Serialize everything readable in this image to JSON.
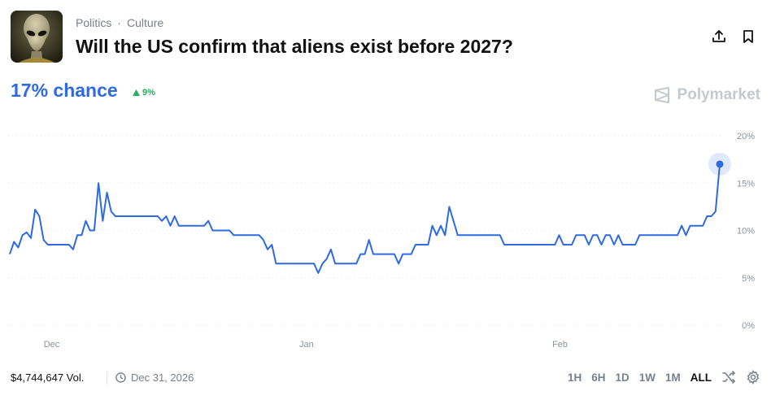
{
  "market": {
    "category": "Politics",
    "subcategory": "Culture",
    "separator": "·",
    "title": "Will the US confirm that aliens exist before 2027?",
    "chance_label": "17% chance",
    "change_label": "9%",
    "brand": "Polymarket"
  },
  "footer": {
    "volume": "$4,744,647 Vol.",
    "end_date": "Dec 31, 2026",
    "ranges": [
      "1H",
      "6H",
      "1D",
      "1W",
      "1M",
      "ALL"
    ],
    "active_range": "ALL"
  },
  "icons": {
    "share": "share-icon",
    "bookmark": "bookmark-icon",
    "calendar": "clock-icon",
    "shuffle": "shuffle-icon",
    "settings": "gear-icon"
  },
  "colors": {
    "accent": "#2d6ae3",
    "up": "#27ae60",
    "muted": "#77808d"
  },
  "chart_data": {
    "type": "line",
    "ytick_labels": [
      "20%",
      "15%",
      "10%",
      "5%",
      "0%"
    ],
    "yticks": [
      20,
      15,
      10,
      5,
      0
    ],
    "xtick_labels": [
      "Dec",
      "Jan",
      "Feb"
    ],
    "ylim": [
      0,
      20
    ],
    "grid": true,
    "series": [
      {
        "values": [
          7.5,
          8.8,
          8.2,
          9.5,
          9.8,
          9.2,
          12.2,
          11.5,
          9,
          8.5,
          8.5,
          8.5,
          8.5,
          8.5,
          8.5,
          8,
          9.5,
          9.5,
          11,
          10,
          10,
          15,
          11,
          14,
          12,
          11.5,
          11.5,
          11.5,
          11.5,
          11.5,
          11.5,
          11.5,
          11.5,
          11.5,
          11.5,
          11.5,
          11,
          11.5,
          10.5,
          11.5,
          10.5,
          10.5,
          10.5,
          10.5,
          10.5,
          10.5,
          10.5,
          11,
          10,
          10,
          10,
          10,
          10,
          9.5,
          9.5,
          9.5,
          9.5,
          9.5,
          9.5,
          9.5,
          9,
          8,
          8.5,
          6.5,
          6.5,
          6.5,
          6.5,
          6.5,
          6.5,
          6.5,
          6.5,
          6.5,
          6.5,
          5.5,
          6.5,
          7,
          8,
          6.5,
          6.5,
          6.5,
          6.5,
          6.5,
          6.5,
          7.5,
          7.5,
          9,
          7.5,
          7.5,
          7.5,
          7.5,
          7.5,
          7.5,
          6.5,
          7.5,
          7.5,
          7.5,
          8.5,
          8.5,
          8.5,
          8.5,
          10.5,
          9.5,
          10.5,
          9.5,
          12.5,
          11,
          9.5,
          9.5,
          9.5,
          9.5,
          9.5,
          9.5,
          9.5,
          9.5,
          9.5,
          9.5,
          9.5,
          8.5,
          8.5,
          8.5,
          8.5,
          8.5,
          8.5,
          8.5,
          8.5,
          8.5,
          8.5,
          8.5,
          8.5,
          8.5,
          9.5,
          8.5,
          8.5,
          8.5,
          9.5,
          9.5,
          9.5,
          8.5,
          9.5,
          9.5,
          8.5,
          9.5,
          9.5,
          8.5,
          9.5,
          8.5,
          8.5,
          8.5,
          8.5,
          9.5,
          9.5,
          9.5,
          9.5,
          9.5,
          9.5,
          9.5,
          9.5,
          9.5,
          9.5,
          10.5,
          9.5,
          10.5,
          10.5,
          10.5,
          10.5,
          11.5,
          11.5,
          12,
          17
        ]
      }
    ]
  }
}
